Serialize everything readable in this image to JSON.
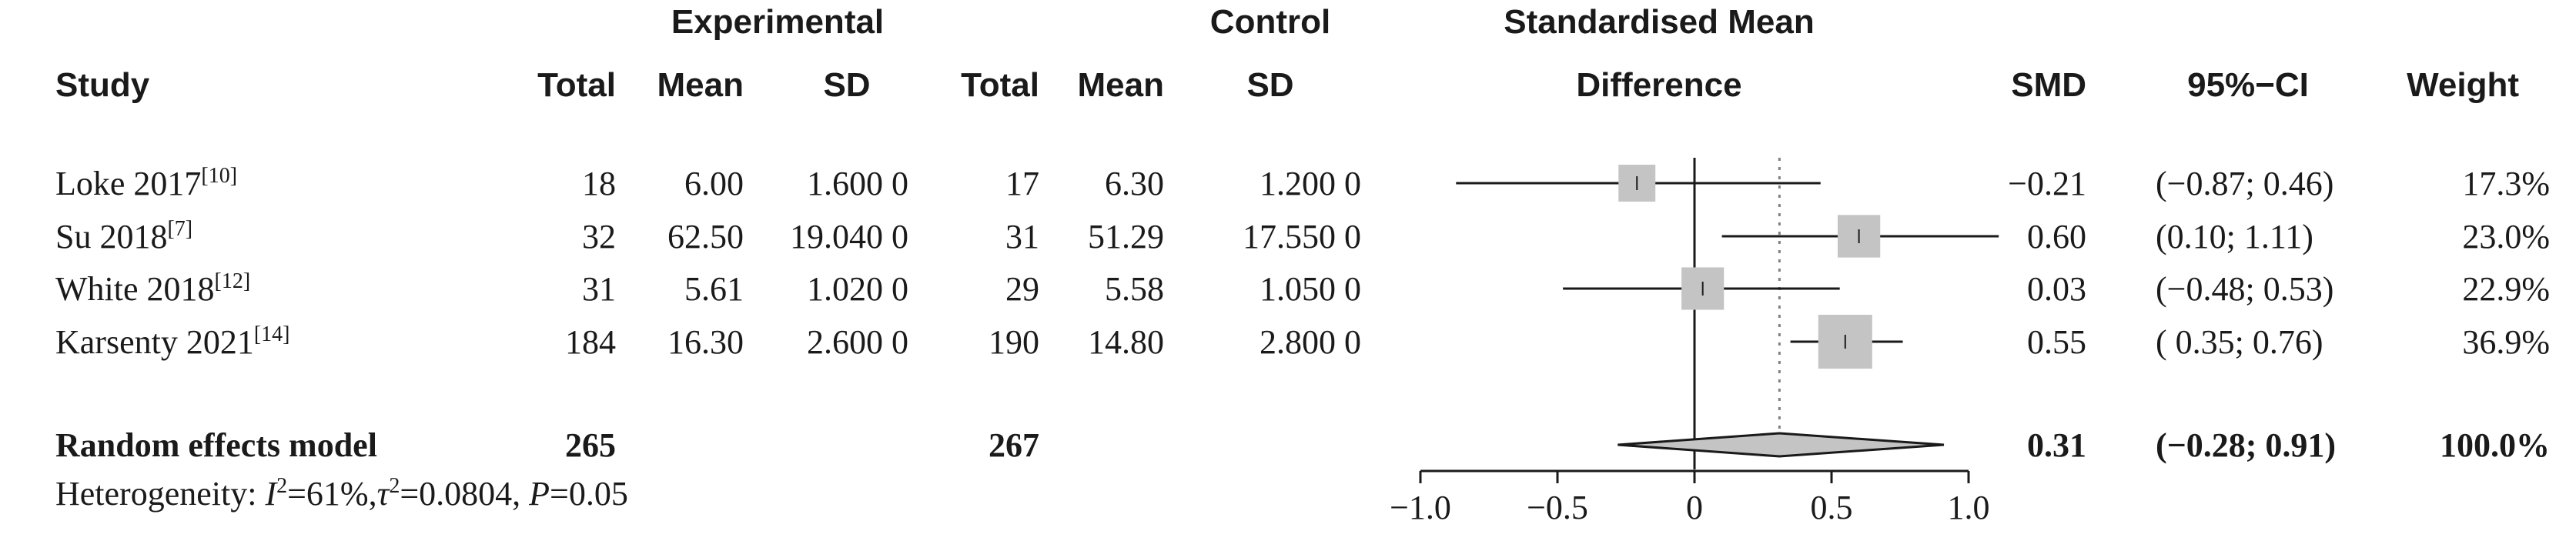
{
  "chart_data": {
    "type": "forest",
    "headers": {
      "group_experimental": "Experimental",
      "group_control": "Control",
      "plot_title_line1": "Standardised Mean",
      "plot_title_line2": "Difference",
      "study": "Study",
      "exp_total": "Total",
      "exp_mean": "Mean",
      "exp_sd": "SD",
      "ctl_total": "Total",
      "ctl_mean": "Mean",
      "ctl_sd": "SD",
      "smd": "SMD",
      "ci": "95%−CI",
      "weight": "Weight"
    },
    "studies": [
      {
        "name": "Loke 2017",
        "ref": "[10]",
        "exp_total": "18",
        "exp_mean": "6.00",
        "exp_sd": "1.600 0",
        "ctl_total": "17",
        "ctl_mean": "6.30",
        "ctl_sd": "1.200 0",
        "smd_text": "−0.21",
        "ci_text": "(−0.87; 0.46)",
        "weight_text": "17.3%",
        "smd": -0.21,
        "lower": -0.87,
        "upper": 0.46,
        "weight": 17.3
      },
      {
        "name": "Su 2018",
        "ref": "[7]",
        "exp_total": "32",
        "exp_mean": "62.50",
        "exp_sd": "19.040 0",
        "ctl_total": "31",
        "ctl_mean": "51.29",
        "ctl_sd": "17.550 0",
        "smd_text": "0.60",
        "ci_text": "(0.10; 1.11)",
        "weight_text": "23.0%",
        "smd": 0.6,
        "lower": 0.1,
        "upper": 1.11,
        "weight": 23.0
      },
      {
        "name": "White 2018",
        "ref": "[12]",
        "exp_total": "31",
        "exp_mean": "5.61",
        "exp_sd": "1.020 0",
        "ctl_total": "29",
        "ctl_mean": "5.58",
        "ctl_sd": "1.050 0",
        "smd_text": "0.03",
        "ci_text": "(−0.48; 0.53)",
        "weight_text": "22.9%",
        "smd": 0.03,
        "lower": -0.48,
        "upper": 0.53,
        "weight": 22.9
      },
      {
        "name": "Karsenty 2021",
        "ref": "[14]",
        "exp_total": "184",
        "exp_mean": "16.30",
        "exp_sd": "2.600 0",
        "ctl_total": "190",
        "ctl_mean": "14.80",
        "ctl_sd": "2.800 0",
        "smd_text": "0.55",
        "ci_text": "( 0.35; 0.76)",
        "weight_text": "36.9%",
        "smd": 0.55,
        "lower": 0.35,
        "upper": 0.76,
        "weight": 36.9
      }
    ],
    "pooled": {
      "label": "Random effects model",
      "exp_total": "265",
      "ctl_total": "267",
      "smd_text": "0.31",
      "ci_text": "(−0.28; 0.91)",
      "weight_text": "100.0%",
      "smd": 0.31,
      "lower": -0.28,
      "upper": 0.91
    },
    "heterogeneity": {
      "prefix": "Heterogeneity: ",
      "i2_symbol": "I",
      "i2_sup": "2",
      "i2_value": "=61%,",
      "tau_symbol": "τ",
      "tau_sup": "2",
      "tau_value": "=0.0804, ",
      "p_symbol": "P",
      "p_value": "=0.05"
    },
    "xlim": [
      -1.0,
      1.0
    ],
    "xticks": [
      -1.0,
      -0.5,
      0,
      0.5,
      1.0
    ],
    "xtick_labels": [
      "−1.0",
      "−0.5",
      "0",
      "0.5",
      "1.0"
    ],
    "reference_line": 0,
    "pooled_line": 0.31,
    "colors": {
      "square": "#c4c4c4",
      "diamond": "#c4c4c4",
      "line": "#1a1a1a",
      "pooled_line": "#808080"
    }
  }
}
